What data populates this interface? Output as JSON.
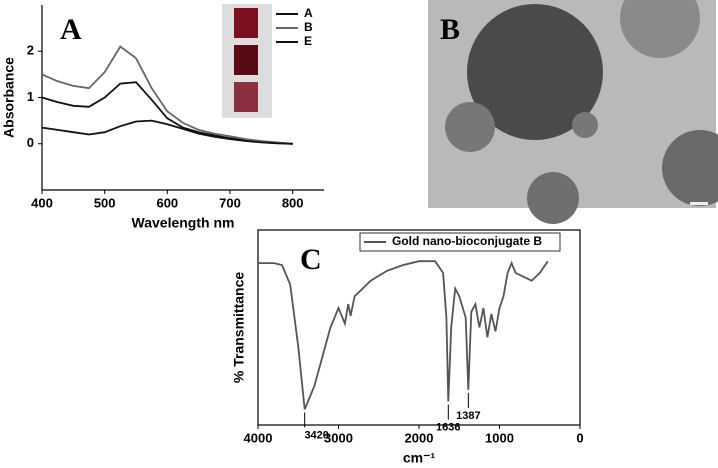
{
  "chart_data": [
    {
      "type": "line",
      "panel_label": "A",
      "x_label": "Wavelength nm",
      "y_label": "Absorbance",
      "xlim": [
        400,
        850
      ],
      "xticks": [
        400,
        500,
        600,
        700,
        800
      ],
      "ylim": [
        -1,
        3
      ],
      "yticks": [
        0,
        1,
        2
      ],
      "frame": false,
      "x": [
        400,
        425,
        450,
        475,
        500,
        525,
        550,
        575,
        600,
        625,
        650,
        675,
        700,
        725,
        750,
        775,
        800
      ],
      "series": [
        {
          "name": "A",
          "color": "#111111",
          "values": [
            1.0,
            0.9,
            0.82,
            0.8,
            1.0,
            1.3,
            1.33,
            0.95,
            0.55,
            0.35,
            0.25,
            0.18,
            0.12,
            0.08,
            0.05,
            0.02,
            0
          ]
        },
        {
          "name": "B",
          "color": "#666666",
          "values": [
            1.5,
            1.35,
            1.25,
            1.2,
            1.55,
            2.1,
            1.85,
            1.2,
            0.7,
            0.45,
            0.3,
            0.22,
            0.16,
            0.1,
            0.06,
            0.03,
            0
          ]
        },
        {
          "name": "E",
          "color": "#111111",
          "values": [
            0.35,
            0.3,
            0.25,
            0.2,
            0.25,
            0.38,
            0.48,
            0.5,
            0.42,
            0.32,
            0.22,
            0.15,
            0.1,
            0.06,
            0.03,
            0.01,
            0
          ]
        }
      ]
    },
    {
      "type": "line",
      "panel_label": "C",
      "x_label": "cm⁻¹",
      "y_label": "% Transmittance",
      "xlim": [
        4000,
        0
      ],
      "xticks": [
        4000,
        3000,
        2000,
        1000,
        0
      ],
      "ylim": [
        0,
        100
      ],
      "frame": true,
      "x": [
        4000,
        3800,
        3700,
        3600,
        3500,
        3420,
        3300,
        3100,
        3000,
        2920,
        2880,
        2850,
        2800,
        2600,
        2400,
        2200,
        2000,
        1800,
        1700,
        1660,
        1636,
        1600,
        1550,
        1500,
        1420,
        1387,
        1350,
        1300,
        1250,
        1200,
        1150,
        1100,
        1050,
        1000,
        950,
        900,
        850,
        800,
        700,
        600,
        500,
        400
      ],
      "series": [
        {
          "name": "Gold nano-bioconjugate B",
          "color": "#555555",
          "values": [
            83,
            83,
            82,
            72,
            40,
            8,
            20,
            50,
            60,
            52,
            62,
            56,
            66,
            74,
            79,
            82,
            84,
            84,
            78,
            55,
            12,
            50,
            70,
            66,
            55,
            18,
            58,
            62,
            50,
            60,
            45,
            57,
            48,
            60,
            66,
            78,
            83,
            78,
            76,
            74,
            78,
            84
          ]
        }
      ],
      "annotations": [
        {
          "value": 3420,
          "label": "3420"
        },
        {
          "value": 1636,
          "label": "1636"
        },
        {
          "value": 1387,
          "label": "1387"
        }
      ]
    }
  ],
  "image_panel": {
    "label": "B"
  }
}
